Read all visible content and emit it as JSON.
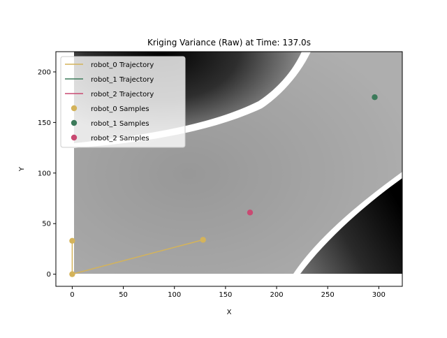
{
  "chart_data": {
    "type": "scatter",
    "title": "Kriging Variance (Raw) at Time: 137.0s",
    "xlabel": "X",
    "ylabel": "Y",
    "xlim": [
      -16,
      323
    ],
    "ylim": [
      -12,
      220
    ],
    "xticks": [
      0,
      50,
      100,
      150,
      200,
      250,
      300
    ],
    "yticks": [
      0,
      50,
      100,
      150,
      200
    ],
    "grid": false,
    "legend_position": "top-left",
    "background": "kriging variance heatmap (grayscale)",
    "heatmap_extent": {
      "x": [
        0,
        323
      ],
      "y": [
        0,
        220
      ]
    },
    "series": [
      {
        "name": "robot_0 Trajectory",
        "kind": "line",
        "color": "#d4b35a",
        "points": [
          [
            128,
            34
          ],
          [
            0,
            0
          ],
          [
            0,
            33
          ]
        ]
      },
      {
        "name": "robot_1 Trajectory",
        "kind": "line",
        "color": "#3c7a5a",
        "points": []
      },
      {
        "name": "robot_2 Trajectory",
        "kind": "line",
        "color": "#c94a72",
        "points": []
      },
      {
        "name": "robot_0 Samples",
        "kind": "scatter",
        "color": "#d4b35a",
        "points": [
          [
            0,
            33
          ],
          [
            0,
            0
          ],
          [
            128,
            34
          ]
        ]
      },
      {
        "name": "robot_1 Samples",
        "kind": "scatter",
        "color": "#3c7a5a",
        "points": [
          [
            296,
            175
          ]
        ]
      },
      {
        "name": "robot_2 Samples",
        "kind": "scatter",
        "color": "#c94a72",
        "points": [
          [
            174,
            61
          ]
        ]
      }
    ]
  }
}
